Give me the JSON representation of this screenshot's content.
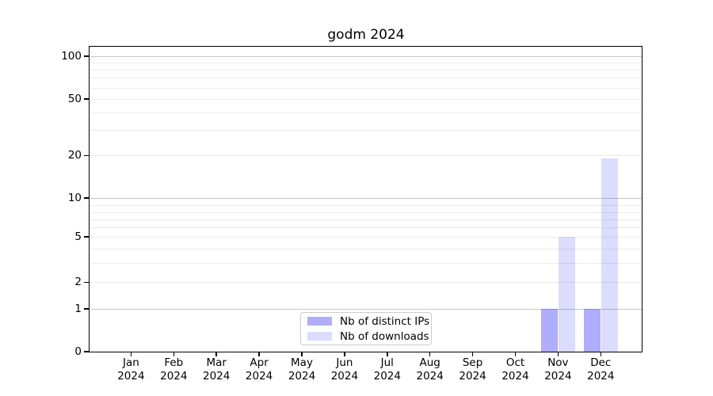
{
  "figure": {
    "title": "godm 2024"
  },
  "y_axis": {
    "tick_labels": [
      "100",
      "50",
      "20",
      "10",
      "5",
      "2",
      "1",
      "0"
    ],
    "tick_values": [
      100,
      50,
      20,
      10,
      5,
      2,
      1,
      0
    ]
  },
  "x_axis": {
    "year_line": "2024",
    "months": [
      "Jan",
      "Feb",
      "Mar",
      "Apr",
      "May",
      "Jun",
      "Jul",
      "Aug",
      "Sep",
      "Oct",
      "Nov",
      "Dec"
    ]
  },
  "legend": {
    "items": [
      {
        "label": "Nb of distinct IPs",
        "color": "rgba(10,10,245,0.33)"
      },
      {
        "label": "Nb of downloads",
        "color": "rgba(10,10,245,0.14)"
      }
    ]
  },
  "colors": {
    "distinct_ips_bar": "rgba(10,10,245,0.33)",
    "downloads_bar": "rgba(10,10,245,0.14)",
    "major_gridline": "#c6c6c6",
    "minor_gridline": "#ececec"
  },
  "chart_data": {
    "type": "bar",
    "title": "godm 2024",
    "categories": [
      "Jan 2024",
      "Feb 2024",
      "Mar 2024",
      "Apr 2024",
      "May 2024",
      "Jun 2024",
      "Jul 2024",
      "Aug 2024",
      "Sep 2024",
      "Oct 2024",
      "Nov 2024",
      "Dec 2024"
    ],
    "series": [
      {
        "name": "Nb of distinct IPs",
        "values": [
          0,
          0,
          0,
          0,
          0,
          0,
          0,
          0,
          0,
          0,
          1,
          1
        ]
      },
      {
        "name": "Nb of downloads",
        "values": [
          0,
          0,
          0,
          0,
          0,
          0,
          0,
          0,
          0,
          0,
          5,
          19
        ]
      }
    ],
    "xlabel": "",
    "ylabel": "",
    "yscale": "log-like with linear 0-1 segment",
    "ylim": [
      0,
      100
    ],
    "yticks": [
      0,
      1,
      2,
      5,
      10,
      20,
      50,
      100
    ],
    "grid": "horizontal only",
    "legend_position": "lower center inside plot"
  }
}
